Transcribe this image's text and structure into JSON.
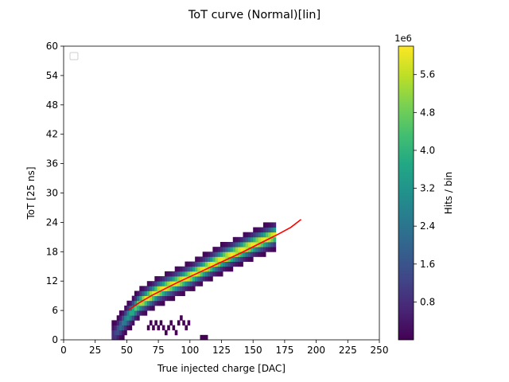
{
  "chart_data": {
    "type": "heatmap",
    "title": "ToT curve (Normal)[lin]",
    "xlabel": "True injected charge [DAC]",
    "ylabel": "ToT [25 ns]",
    "xlim": [
      0,
      250
    ],
    "ylim": [
      0,
      60
    ],
    "xticks": [
      0,
      25,
      50,
      75,
      100,
      125,
      150,
      175,
      200,
      225,
      250
    ],
    "yticks": [
      0,
      6,
      12,
      18,
      24,
      30,
      36,
      42,
      48,
      54,
      60
    ],
    "grid": false,
    "legend": "top-left (empty)",
    "colormap": "viridis",
    "colorbar": {
      "label": "Hits / bin",
      "offset_text": "1e6",
      "range": [
        0,
        6.2
      ],
      "ticks": [
        0.8,
        1.6,
        2.4,
        3.2,
        4.0,
        4.8,
        5.6
      ],
      "tick_labels": [
        "0.8",
        "1.6",
        "2.4",
        "3.2",
        "4.0",
        "4.8",
        "5.6"
      ]
    },
    "heatmap": {
      "x_bin_width": 2,
      "y_bin_height": 1,
      "x_range": [
        38,
        168
      ],
      "band_center_ref": [
        [
          40,
          1
        ],
        [
          50,
          4.5
        ],
        [
          60,
          7.5
        ],
        [
          75,
          10
        ],
        [
          100,
          13
        ],
        [
          125,
          16.5
        ],
        [
          150,
          19.5
        ],
        [
          168,
          21.5
        ]
      ],
      "band_half_width": 2.5,
      "peak_value": 6.1
    },
    "isolated_bins": [
      [
        66,
        2
      ],
      [
        68,
        3
      ],
      [
        70,
        2
      ],
      [
        72,
        3
      ],
      [
        74,
        2
      ],
      [
        76,
        3
      ],
      [
        78,
        2
      ],
      [
        80,
        1
      ],
      [
        82,
        2
      ],
      [
        84,
        3
      ],
      [
        86,
        2
      ],
      [
        88,
        1
      ],
      [
        90,
        3
      ],
      [
        92,
        4
      ],
      [
        94,
        3
      ],
      [
        96,
        2
      ],
      [
        98,
        3
      ],
      [
        108,
        0
      ],
      [
        110,
        0
      ],
      [
        112,
        0
      ]
    ],
    "fit_line": {
      "color": "#ff0000",
      "x": [
        52,
        60,
        70,
        80,
        90,
        100,
        110,
        120,
        130,
        140,
        150,
        160,
        170,
        180,
        188
      ],
      "y": [
        6.2,
        7.6,
        9.1,
        10.4,
        11.7,
        12.9,
        14.1,
        15.3,
        16.5,
        17.7,
        19.0,
        20.3,
        21.6,
        23.0,
        24.6
      ]
    }
  }
}
